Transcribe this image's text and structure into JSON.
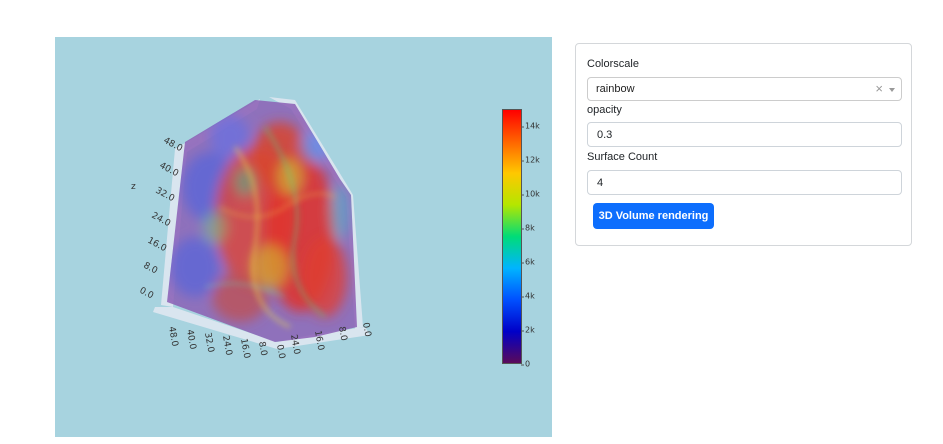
{
  "controls": {
    "colorscale_label": "Colorscale",
    "colorscale_value": "rainbow",
    "clear_symbol": "×",
    "opacity_label": "opacity",
    "opacity_value": "0.3",
    "surface_count_label": "Surface Count",
    "surface_count_value": "4",
    "render_button_label": "3D Volume rendering"
  },
  "plot": {
    "background_color": "#a7d3df",
    "colorscale_name": "rainbow",
    "colorbar": {
      "ticks": [
        "0",
        "2k",
        "4k",
        "6k",
        "8k",
        "10k",
        "12k",
        "14k"
      ],
      "max": 15000,
      "colors": [
        "#5a0a5a",
        "#0000c8",
        "#0050ff",
        "#00b4ff",
        "#00dc78",
        "#b4e600",
        "#ffc800",
        "#ff6400",
        "#ff0000"
      ]
    },
    "z_axis": {
      "name": "z",
      "ticks": [
        "48.0",
        "40.0",
        "32.0",
        "24.0",
        "16.0",
        "8.0",
        "0.0"
      ]
    },
    "x_axis": {
      "ticks": [
        "48.0",
        "40.0",
        "32.0",
        "24.0",
        "16.0",
        "8.0",
        "0.0"
      ]
    },
    "y_axis": {
      "ticks": [
        "24.0",
        "16.0",
        "8.0",
        "0.0"
      ]
    }
  }
}
